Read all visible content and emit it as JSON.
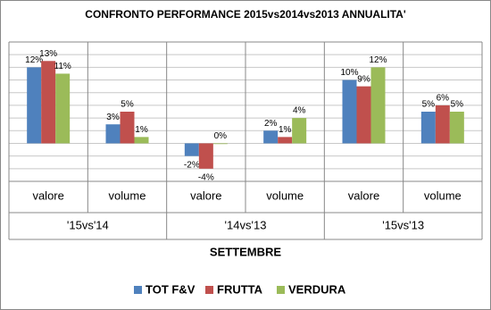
{
  "chart_data": {
    "type": "bar",
    "title": "CONFRONTO PERFORMANCE 2015vs2014vs2013 ANNUALITA'",
    "x_label": "SETTEMBRE",
    "categories": [
      "valore",
      "volume",
      "valore",
      "volume",
      "valore",
      "volume"
    ],
    "groups": [
      "'15vs'14",
      "'14vs'13",
      "'15vs'13"
    ],
    "series": [
      {
        "name": "TOT F&V",
        "color": "#4f81bd",
        "values": [
          12,
          3,
          -2,
          2,
          10,
          5
        ],
        "value_labels": [
          "12%",
          "3%",
          "-2%",
          "2%",
          "10%",
          "5%"
        ]
      },
      {
        "name": "FRUTTA",
        "color": "#c0504d",
        "values": [
          13,
          5,
          -4,
          1,
          9,
          6
        ],
        "value_labels": [
          "13%",
          "5%",
          "-4%",
          "1%",
          "9%",
          "6%"
        ]
      },
      {
        "name": "VERDURA",
        "color": "#9bbb59",
        "values": [
          11,
          1,
          0,
          4,
          12,
          5
        ],
        "value_labels": [
          "11%",
          "1%",
          "0%",
          "4%",
          "12%",
          "5%"
        ]
      }
    ],
    "ylim": [
      -6,
      16
    ],
    "yticks": [
      -6,
      -4,
      -2,
      0,
      2,
      4,
      6,
      8,
      10,
      12,
      14,
      16
    ],
    "grid": true,
    "legend": "bottom"
  }
}
